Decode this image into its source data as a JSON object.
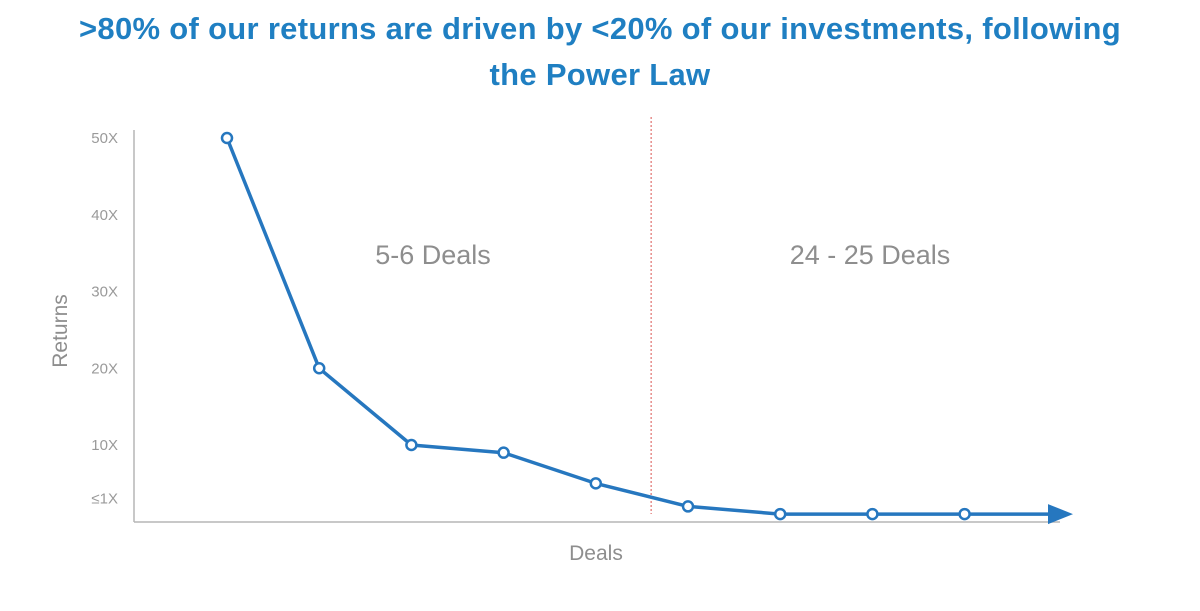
{
  "title_line1": ">80% of our returns are driven by <20% of our investments, following",
  "title_line2": "the Power Law",
  "colors": {
    "title": "#1f7fc2",
    "line": "#2677bf",
    "axis": "#b5b5b5",
    "divider": "#d9534f",
    "text": "#8e8e8e"
  },
  "chart_data": {
    "type": "line",
    "xlabel": "Deals",
    "ylabel": "Returns",
    "y_ticks": [
      {
        "value": 50,
        "label": "50X"
      },
      {
        "value": 40,
        "label": "40X"
      },
      {
        "value": 30,
        "label": "30X"
      },
      {
        "value": 20,
        "label": "20X"
      },
      {
        "value": 10,
        "label": "10X"
      },
      {
        "value": 3,
        "label": "≤1X"
      }
    ],
    "ylim": [
      0,
      50
    ],
    "x": [
      1,
      2,
      3,
      4,
      5,
      6,
      7,
      8,
      9
    ],
    "values": [
      50,
      20,
      10,
      9,
      5,
      2,
      1,
      1,
      1
    ],
    "divider_after_x": 5.6,
    "annotations": [
      "5-6 Deals",
      "24 - 25 Deals"
    ],
    "grid": false,
    "x_axis_arrow": true
  }
}
